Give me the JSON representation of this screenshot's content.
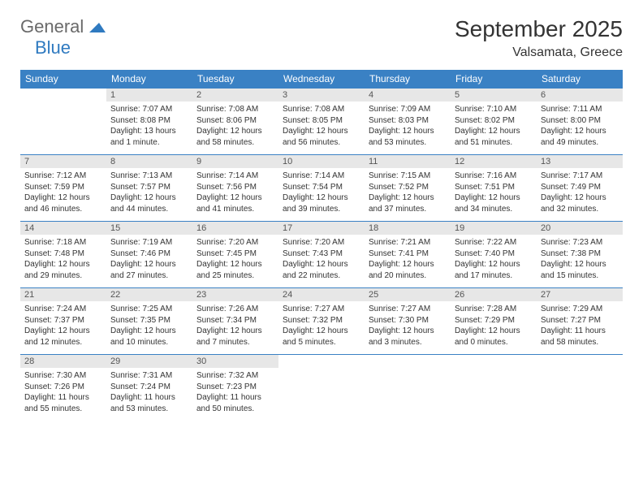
{
  "logo": {
    "general": "General",
    "blue": "Blue"
  },
  "header": {
    "month_year": "September 2025",
    "location": "Valsamata, Greece"
  },
  "colors": {
    "header_bg": "#3a81c4",
    "header_text": "#ffffff",
    "daynum_bg": "#e7e7e7",
    "rule": "#3a81c4",
    "logo_blue": "#2f7ac0",
    "logo_gray": "#6a6a6a"
  },
  "weekdays": [
    "Sunday",
    "Monday",
    "Tuesday",
    "Wednesday",
    "Thursday",
    "Friday",
    "Saturday"
  ],
  "weeks": [
    [
      null,
      {
        "n": "1",
        "sr": "Sunrise: 7:07 AM",
        "ss": "Sunset: 8:08 PM",
        "d1": "Daylight: 13 hours",
        "d2": "and 1 minute."
      },
      {
        "n": "2",
        "sr": "Sunrise: 7:08 AM",
        "ss": "Sunset: 8:06 PM",
        "d1": "Daylight: 12 hours",
        "d2": "and 58 minutes."
      },
      {
        "n": "3",
        "sr": "Sunrise: 7:08 AM",
        "ss": "Sunset: 8:05 PM",
        "d1": "Daylight: 12 hours",
        "d2": "and 56 minutes."
      },
      {
        "n": "4",
        "sr": "Sunrise: 7:09 AM",
        "ss": "Sunset: 8:03 PM",
        "d1": "Daylight: 12 hours",
        "d2": "and 53 minutes."
      },
      {
        "n": "5",
        "sr": "Sunrise: 7:10 AM",
        "ss": "Sunset: 8:02 PM",
        "d1": "Daylight: 12 hours",
        "d2": "and 51 minutes."
      },
      {
        "n": "6",
        "sr": "Sunrise: 7:11 AM",
        "ss": "Sunset: 8:00 PM",
        "d1": "Daylight: 12 hours",
        "d2": "and 49 minutes."
      }
    ],
    [
      {
        "n": "7",
        "sr": "Sunrise: 7:12 AM",
        "ss": "Sunset: 7:59 PM",
        "d1": "Daylight: 12 hours",
        "d2": "and 46 minutes."
      },
      {
        "n": "8",
        "sr": "Sunrise: 7:13 AM",
        "ss": "Sunset: 7:57 PM",
        "d1": "Daylight: 12 hours",
        "d2": "and 44 minutes."
      },
      {
        "n": "9",
        "sr": "Sunrise: 7:14 AM",
        "ss": "Sunset: 7:56 PM",
        "d1": "Daylight: 12 hours",
        "d2": "and 41 minutes."
      },
      {
        "n": "10",
        "sr": "Sunrise: 7:14 AM",
        "ss": "Sunset: 7:54 PM",
        "d1": "Daylight: 12 hours",
        "d2": "and 39 minutes."
      },
      {
        "n": "11",
        "sr": "Sunrise: 7:15 AM",
        "ss": "Sunset: 7:52 PM",
        "d1": "Daylight: 12 hours",
        "d2": "and 37 minutes."
      },
      {
        "n": "12",
        "sr": "Sunrise: 7:16 AM",
        "ss": "Sunset: 7:51 PM",
        "d1": "Daylight: 12 hours",
        "d2": "and 34 minutes."
      },
      {
        "n": "13",
        "sr": "Sunrise: 7:17 AM",
        "ss": "Sunset: 7:49 PM",
        "d1": "Daylight: 12 hours",
        "d2": "and 32 minutes."
      }
    ],
    [
      {
        "n": "14",
        "sr": "Sunrise: 7:18 AM",
        "ss": "Sunset: 7:48 PM",
        "d1": "Daylight: 12 hours",
        "d2": "and 29 minutes."
      },
      {
        "n": "15",
        "sr": "Sunrise: 7:19 AM",
        "ss": "Sunset: 7:46 PM",
        "d1": "Daylight: 12 hours",
        "d2": "and 27 minutes."
      },
      {
        "n": "16",
        "sr": "Sunrise: 7:20 AM",
        "ss": "Sunset: 7:45 PM",
        "d1": "Daylight: 12 hours",
        "d2": "and 25 minutes."
      },
      {
        "n": "17",
        "sr": "Sunrise: 7:20 AM",
        "ss": "Sunset: 7:43 PM",
        "d1": "Daylight: 12 hours",
        "d2": "and 22 minutes."
      },
      {
        "n": "18",
        "sr": "Sunrise: 7:21 AM",
        "ss": "Sunset: 7:41 PM",
        "d1": "Daylight: 12 hours",
        "d2": "and 20 minutes."
      },
      {
        "n": "19",
        "sr": "Sunrise: 7:22 AM",
        "ss": "Sunset: 7:40 PM",
        "d1": "Daylight: 12 hours",
        "d2": "and 17 minutes."
      },
      {
        "n": "20",
        "sr": "Sunrise: 7:23 AM",
        "ss": "Sunset: 7:38 PM",
        "d1": "Daylight: 12 hours",
        "d2": "and 15 minutes."
      }
    ],
    [
      {
        "n": "21",
        "sr": "Sunrise: 7:24 AM",
        "ss": "Sunset: 7:37 PM",
        "d1": "Daylight: 12 hours",
        "d2": "and 12 minutes."
      },
      {
        "n": "22",
        "sr": "Sunrise: 7:25 AM",
        "ss": "Sunset: 7:35 PM",
        "d1": "Daylight: 12 hours",
        "d2": "and 10 minutes."
      },
      {
        "n": "23",
        "sr": "Sunrise: 7:26 AM",
        "ss": "Sunset: 7:34 PM",
        "d1": "Daylight: 12 hours",
        "d2": "and 7 minutes."
      },
      {
        "n": "24",
        "sr": "Sunrise: 7:27 AM",
        "ss": "Sunset: 7:32 PM",
        "d1": "Daylight: 12 hours",
        "d2": "and 5 minutes."
      },
      {
        "n": "25",
        "sr": "Sunrise: 7:27 AM",
        "ss": "Sunset: 7:30 PM",
        "d1": "Daylight: 12 hours",
        "d2": "and 3 minutes."
      },
      {
        "n": "26",
        "sr": "Sunrise: 7:28 AM",
        "ss": "Sunset: 7:29 PM",
        "d1": "Daylight: 12 hours",
        "d2": "and 0 minutes."
      },
      {
        "n": "27",
        "sr": "Sunrise: 7:29 AM",
        "ss": "Sunset: 7:27 PM",
        "d1": "Daylight: 11 hours",
        "d2": "and 58 minutes."
      }
    ],
    [
      {
        "n": "28",
        "sr": "Sunrise: 7:30 AM",
        "ss": "Sunset: 7:26 PM",
        "d1": "Daylight: 11 hours",
        "d2": "and 55 minutes."
      },
      {
        "n": "29",
        "sr": "Sunrise: 7:31 AM",
        "ss": "Sunset: 7:24 PM",
        "d1": "Daylight: 11 hours",
        "d2": "and 53 minutes."
      },
      {
        "n": "30",
        "sr": "Sunrise: 7:32 AM",
        "ss": "Sunset: 7:23 PM",
        "d1": "Daylight: 11 hours",
        "d2": "and 50 minutes."
      },
      null,
      null,
      null,
      null
    ]
  ]
}
